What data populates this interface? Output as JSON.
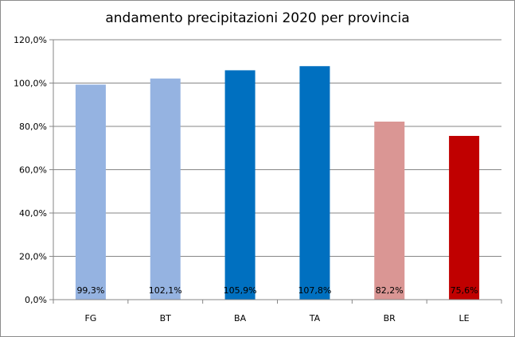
{
  "chart_data": {
    "type": "bar",
    "title": "andamento precipitazioni 2020 per provincia",
    "categories": [
      "FG",
      "BT",
      "BA",
      "TA",
      "BR",
      "LE"
    ],
    "values": [
      99.3,
      102.1,
      105.9,
      107.8,
      82.2,
      75.6
    ],
    "data_labels": [
      "99,3%",
      "102,1%",
      "105,9%",
      "107,8%",
      "82,2%",
      "75,6%"
    ],
    "colors": [
      "#95B3E1",
      "#95B3E1",
      "#0070C0",
      "#0070C0",
      "#DA9694",
      "#C00000"
    ],
    "ylim": [
      0,
      120
    ],
    "y_ticks": [
      0,
      20,
      40,
      60,
      80,
      100,
      120
    ],
    "y_tick_labels": [
      "0,0%",
      "20,0%",
      "40,0%",
      "60,0%",
      "80,0%",
      "100,0%",
      "120,0%"
    ],
    "xlabel": "",
    "ylabel": "",
    "grid": true,
    "legend": "none"
  }
}
